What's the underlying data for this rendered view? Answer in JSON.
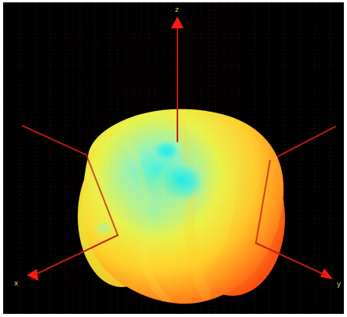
{
  "scene": {
    "background_color": "#000000",
    "grid_color": "#7a1b12",
    "axis_color": "#b01a12",
    "arrow_color": "#ff1a12",
    "surface_colors": {
      "cyan": "#21f0f0",
      "mint": "#92f4b4",
      "yellow": "#f6ef35",
      "orange": "#ff9a22",
      "red_orange": "#ff5312"
    }
  },
  "axes": {
    "top_label": "z",
    "left_label": "x",
    "right_label": "y"
  }
}
